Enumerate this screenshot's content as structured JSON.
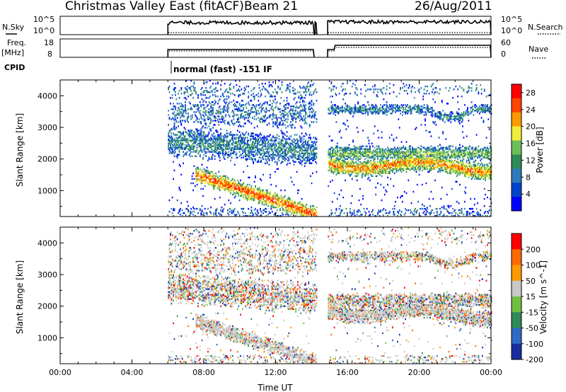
{
  "header": {
    "station": "Christmas Valley East (fitACF)",
    "beam": "Beam 21",
    "date": "26/Aug/2011"
  },
  "strips": {
    "nsky_label": "N.Sky",
    "nsky_ticks": [
      "10^5",
      "10^0"
    ],
    "nsearch_label": "N.Search",
    "nsearch_ticks": [
      "10^5",
      "10^0"
    ],
    "freq_label_1": "Freq.",
    "freq_label_2": "[MHz]",
    "freq_ticks": [
      "18",
      "8"
    ],
    "nave_label": "Nave",
    "nave_ticks": [
      "60",
      "0"
    ],
    "cpid_label": "CPID",
    "cpid_text": "normal (fast) -151 IF"
  },
  "colors": {
    "power_scale": [
      "#0000ff",
      "#0044cc",
      "#2e7bbb",
      "#2e8b57",
      "#6bbf59",
      "#f1ee3b",
      "#ff9900",
      "#ff4400",
      "#ff0000"
    ],
    "velocity_scale": [
      "#1a2ea0",
      "#2d6bc4",
      "#2e8b57",
      "#70c040",
      "#c8c8c8",
      "#ff9900",
      "#ff6a00",
      "#ff0000"
    ]
  },
  "chart_data": [
    {
      "type": "heatmap",
      "title": "",
      "xlabel": "",
      "ylabel": "Slant Range [km]",
      "x_ticks": [
        "00:00",
        "04:00",
        "08:00",
        "12:00",
        "16:00",
        "20:00",
        "00:00"
      ],
      "y_ticks": [
        1000,
        2000,
        3000,
        4000
      ],
      "xlim_hours": [
        0,
        24
      ],
      "ylim": [
        180,
        4500
      ],
      "colorbar_label": "Power [dB]",
      "colorbar_ticks": [
        4,
        8,
        12,
        16,
        20,
        24,
        28
      ],
      "colorbar_range": [
        0,
        30
      ],
      "data_gaps_hours": [
        [
          0,
          6
        ],
        [
          14.25,
          14.9
        ]
      ]
    },
    {
      "type": "heatmap",
      "title": "",
      "xlabel": "Time UT",
      "ylabel": "Slant Range [km]",
      "x_ticks": [
        "00:00",
        "04:00",
        "08:00",
        "12:00",
        "16:00",
        "20:00",
        "00:00"
      ],
      "y_ticks": [
        1000,
        2000,
        3000,
        4000
      ],
      "xlim_hours": [
        0,
        24
      ],
      "ylim": [
        180,
        4500
      ],
      "colorbar_label": "Velocity [m s^-1]",
      "colorbar_ticks": [
        200,
        100,
        50,
        15,
        -15,
        -50,
        -100,
        -200
      ],
      "data_gaps_hours": [
        [
          0,
          6
        ],
        [
          14.25,
          14.9
        ]
      ]
    }
  ]
}
